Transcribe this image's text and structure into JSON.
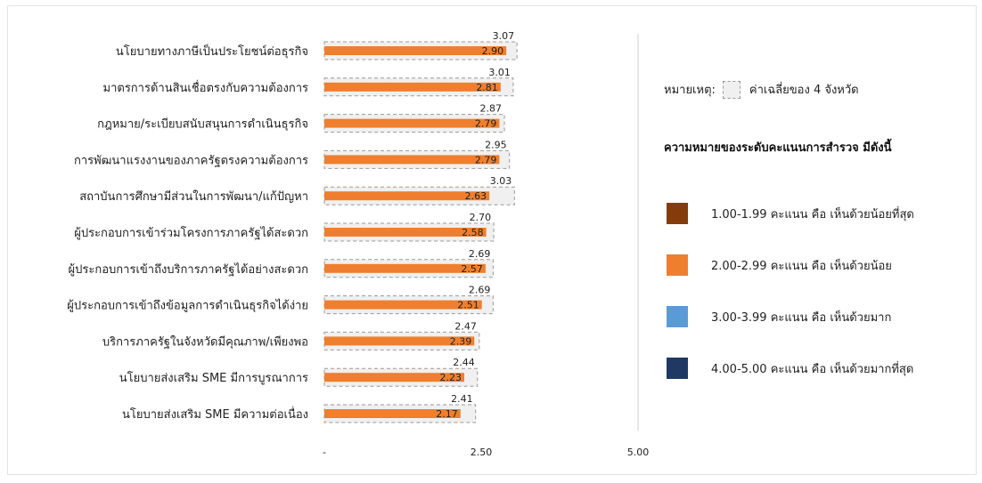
{
  "chart_data": {
    "type": "bar",
    "orientation": "horizontal",
    "categories": [
      "นโยบายทางภาษีเป็นประโยชน์ต่อธุรกิจ",
      "มาตรการด้านสินเชื่อตรงกับความต้องการ",
      "กฎหมาย/ระเบียบสนับสนุนการดำเนินธุรกิจ",
      "การพัฒนาแรงงานของภาครัฐตรงความต้องการ",
      "สถาบันการศึกษามีส่วนในการพัฒนา/แก้ปัญหา",
      "ผู้ประกอบการเข้าร่วมโครงการภาครัฐได้สะดวก",
      "ผู้ประกอบการเข้าถึงบริการภาครัฐได้อย่างสะดวก",
      "ผู้ประกอบการเข้าถึงข้อมูลการดำเนินธุรกิจได้ง่าย",
      "บริการภาครัฐในจังหวัดมีคุณภาพ/เพียงพอ",
      "นโยบายส่งเสริม SME มีการบูรณาการ",
      "นโยบายส่งเสริม SME มีความต่อเนื่อง"
    ],
    "series": [
      {
        "values": [
          2.9,
          2.81,
          2.79,
          2.79,
          2.63,
          2.58,
          2.57,
          2.51,
          2.39,
          2.23,
          2.17
        ],
        "color": "#ef7f2e"
      },
      {
        "name": "ค่าเฉลี่ยของ 4 จังหวัด",
        "values": [
          3.07,
          3.01,
          2.87,
          2.95,
          3.03,
          2.7,
          2.69,
          2.69,
          2.47,
          2.44,
          2.41
        ],
        "style": "dashed-box",
        "color": "#f0f0f0"
      }
    ],
    "value_labels": {
      "series0": [
        "2.90",
        "2.81",
        "2.79",
        "2.79",
        "2.63",
        "2.58",
        "2.57",
        "2.51",
        "2.39",
        "2.23",
        "2.17"
      ],
      "series1": [
        "3.07",
        "3.01",
        "2.87",
        "2.95",
        "3.03",
        "2.70",
        "2.69",
        "2.69",
        "2.47",
        "2.44",
        "2.41"
      ]
    },
    "xlim": [
      0,
      5
    ],
    "xticks": [
      0,
      2.5,
      5
    ],
    "xtick_labels": [
      "-",
      "2.50",
      "5.00"
    ],
    "grid": false
  },
  "note": {
    "label": "หมายเหตุ:",
    "text": "ค่าเฉลี่ยของ 4 จังหวัด"
  },
  "legend": {
    "title": "ความหมายของระดับคะแนนการสำรวจ มีดังนี้",
    "items": [
      {
        "label": "1.00-1.99 คะแนน คือ เห็นด้วยน้อยที่สุด",
        "color": "#843c0c"
      },
      {
        "label": "2.00-2.99  คะแนน คือ เห็นด้วยน้อย",
        "color": "#ef7f2e"
      },
      {
        "label": "3.00-3.99 คะแนน คือ เห็นด้วยมาก",
        "color": "#5b9bd5"
      },
      {
        "label": "4.00-5.00 คะแนน คือ เห็นด้วยมากที่สุด",
        "color": "#1f3864"
      }
    ]
  }
}
